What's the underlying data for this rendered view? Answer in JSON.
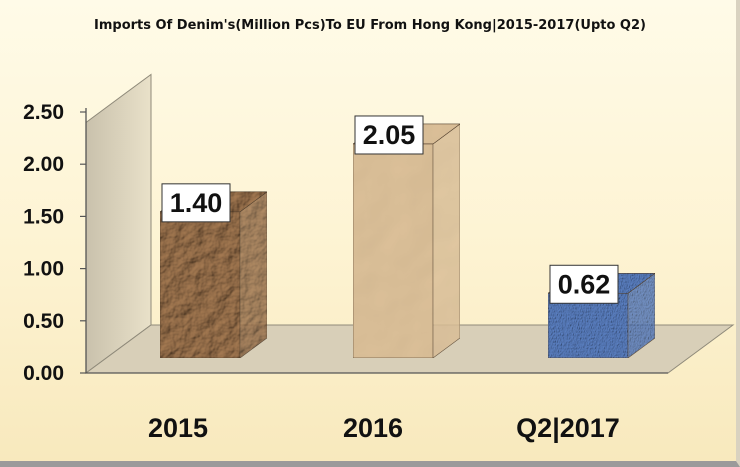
{
  "chart_data": {
    "type": "bar",
    "title": "Imports Of Denim's(Million Pcs)To EU From Hong Kong|2015-2017(Upto Q2)",
    "categories": [
      "2015",
      "2016",
      "Q2|2017"
    ],
    "values": [
      1.4,
      2.05,
      0.62
    ],
    "data_labels": [
      "1.40",
      "2.05",
      "0.62"
    ],
    "y_ticks": [
      "0.00",
      "0.50",
      "1.00",
      "1.50",
      "2.00",
      "2.50"
    ],
    "ylim": [
      0,
      2.5
    ],
    "xlabel": "",
    "ylabel": "",
    "grid": false,
    "legend": "none",
    "bar_colors": [
      "#a57a52",
      "#e6c9a0",
      "#5b80c2"
    ]
  }
}
